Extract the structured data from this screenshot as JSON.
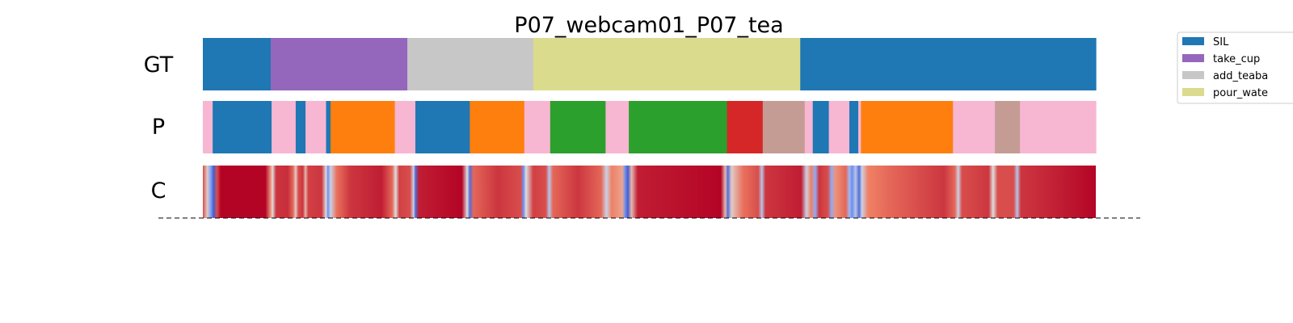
{
  "chart_data": {
    "type": "heatmap",
    "title": "P07_webcam01_P07_tea",
    "rows": [
      {
        "label": "GT",
        "segments": [
          {
            "start": 0.0,
            "end": 0.076,
            "class": "SIL"
          },
          {
            "start": 0.076,
            "end": 0.229,
            "class": "take_cup"
          },
          {
            "start": 0.229,
            "end": 0.37,
            "class": "add_teabag"
          },
          {
            "start": 0.37,
            "end": 0.669,
            "class": "pour_water"
          },
          {
            "start": 0.669,
            "end": 1.0,
            "class": "SIL"
          }
        ]
      },
      {
        "label": "P",
        "segments": [
          {
            "start": 0.0,
            "end": 0.011,
            "color": "#f7b6d2"
          },
          {
            "start": 0.011,
            "end": 0.077,
            "color": "#1f77b4"
          },
          {
            "start": 0.077,
            "end": 0.104,
            "color": "#f7b6d2"
          },
          {
            "start": 0.104,
            "end": 0.115,
            "color": "#1f77b4"
          },
          {
            "start": 0.115,
            "end": 0.138,
            "color": "#f7b6d2"
          },
          {
            "start": 0.138,
            "end": 0.143,
            "color": "#1f77b4"
          },
          {
            "start": 0.143,
            "end": 0.215,
            "color": "#ff7f0e"
          },
          {
            "start": 0.215,
            "end": 0.238,
            "color": "#f7b6d2"
          },
          {
            "start": 0.238,
            "end": 0.299,
            "color": "#1f77b4"
          },
          {
            "start": 0.299,
            "end": 0.36,
            "color": "#ff7f0e"
          },
          {
            "start": 0.36,
            "end": 0.389,
            "color": "#f7b6d2"
          },
          {
            "start": 0.389,
            "end": 0.451,
            "color": "#2ca02c"
          },
          {
            "start": 0.451,
            "end": 0.477,
            "color": "#f7b6d2"
          },
          {
            "start": 0.477,
            "end": 0.587,
            "color": "#2ca02c"
          },
          {
            "start": 0.587,
            "end": 0.627,
            "color": "#d62728"
          },
          {
            "start": 0.627,
            "end": 0.674,
            "color": "#c49c94"
          },
          {
            "start": 0.674,
            "end": 0.683,
            "color": "#f7b6d2"
          },
          {
            "start": 0.683,
            "end": 0.701,
            "color": "#1f77b4"
          },
          {
            "start": 0.701,
            "end": 0.724,
            "color": "#f7b6d2"
          },
          {
            "start": 0.724,
            "end": 0.734,
            "color": "#1f77b4"
          },
          {
            "start": 0.734,
            "end": 0.737,
            "color": "#f7b6d2"
          },
          {
            "start": 0.737,
            "end": 0.84,
            "color": "#ff7f0e"
          },
          {
            "start": 0.84,
            "end": 0.887,
            "color": "#f7b6d2"
          },
          {
            "start": 0.887,
            "end": 0.915,
            "color": "#c49c94"
          },
          {
            "start": 0.915,
            "end": 1.0,
            "color": "#f7b6d2"
          }
        ]
      },
      {
        "label": "C",
        "colormap": "coolwarm",
        "confidence": [
          {
            "t": 0.0,
            "v": 0.85
          },
          {
            "t": 0.005,
            "v": 0.55
          },
          {
            "t": 0.009,
            "v": 0.25
          },
          {
            "t": 0.012,
            "v": 0.05
          },
          {
            "t": 0.016,
            "v": 0.85
          },
          {
            "t": 0.02,
            "v": 1.0
          },
          {
            "t": 0.07,
            "v": 1.0
          },
          {
            "t": 0.076,
            "v": 0.7
          },
          {
            "t": 0.078,
            "v": 0.5
          },
          {
            "t": 0.082,
            "v": 0.9
          },
          {
            "t": 0.095,
            "v": 0.92
          },
          {
            "t": 0.101,
            "v": 0.8
          },
          {
            "t": 0.104,
            "v": 0.55
          },
          {
            "t": 0.107,
            "v": 0.85
          },
          {
            "t": 0.112,
            "v": 0.9
          },
          {
            "t": 0.115,
            "v": 0.6
          },
          {
            "t": 0.118,
            "v": 0.88
          },
          {
            "t": 0.133,
            "v": 0.9
          },
          {
            "t": 0.138,
            "v": 0.5
          },
          {
            "t": 0.14,
            "v": 0.2
          },
          {
            "t": 0.143,
            "v": 0.45
          },
          {
            "t": 0.15,
            "v": 0.78
          },
          {
            "t": 0.165,
            "v": 0.9
          },
          {
            "t": 0.2,
            "v": 0.95
          },
          {
            "t": 0.212,
            "v": 0.8
          },
          {
            "t": 0.216,
            "v": 0.5
          },
          {
            "t": 0.22,
            "v": 0.88
          },
          {
            "t": 0.232,
            "v": 0.85
          },
          {
            "t": 0.236,
            "v": 0.45
          },
          {
            "t": 0.238,
            "v": 0.1
          },
          {
            "t": 0.242,
            "v": 0.95
          },
          {
            "t": 0.29,
            "v": 1.0
          },
          {
            "t": 0.296,
            "v": 0.5
          },
          {
            "t": 0.299,
            "v": 0.1
          },
          {
            "t": 0.303,
            "v": 0.8
          },
          {
            "t": 0.33,
            "v": 0.9
          },
          {
            "t": 0.356,
            "v": 0.85
          },
          {
            "t": 0.359,
            "v": 0.2
          },
          {
            "t": 0.362,
            "v": 0.5
          },
          {
            "t": 0.37,
            "v": 0.88
          },
          {
            "t": 0.384,
            "v": 0.85
          },
          {
            "t": 0.388,
            "v": 0.4
          },
          {
            "t": 0.392,
            "v": 0.8
          },
          {
            "t": 0.42,
            "v": 0.9
          },
          {
            "t": 0.446,
            "v": 0.8
          },
          {
            "t": 0.452,
            "v": 0.45
          },
          {
            "t": 0.458,
            "v": 0.75
          },
          {
            "t": 0.47,
            "v": 0.65
          },
          {
            "t": 0.473,
            "v": 0.2
          },
          {
            "t": 0.476,
            "v": 0.05
          },
          {
            "t": 0.48,
            "v": 0.6
          },
          {
            "t": 0.487,
            "v": 0.95
          },
          {
            "t": 0.58,
            "v": 1.0
          },
          {
            "t": 0.585,
            "v": 0.6
          },
          {
            "t": 0.588,
            "v": 0.1
          },
          {
            "t": 0.592,
            "v": 0.55
          },
          {
            "t": 0.605,
            "v": 0.78
          },
          {
            "t": 0.622,
            "v": 0.85
          },
          {
            "t": 0.626,
            "v": 0.4
          },
          {
            "t": 0.63,
            "v": 0.9
          },
          {
            "t": 0.67,
            "v": 0.95
          },
          {
            "t": 0.676,
            "v": 0.45
          },
          {
            "t": 0.681,
            "v": 0.75
          },
          {
            "t": 0.686,
            "v": 0.3
          },
          {
            "t": 0.69,
            "v": 0.9
          },
          {
            "t": 0.7,
            "v": 0.85
          },
          {
            "t": 0.704,
            "v": 0.3
          },
          {
            "t": 0.708,
            "v": 0.7
          },
          {
            "t": 0.72,
            "v": 0.8
          },
          {
            "t": 0.724,
            "v": 0.35
          },
          {
            "t": 0.727,
            "v": 0.2
          },
          {
            "t": 0.731,
            "v": 0.4
          },
          {
            "t": 0.735,
            "v": 0.1
          },
          {
            "t": 0.738,
            "v": 0.45
          },
          {
            "t": 0.745,
            "v": 0.75
          },
          {
            "t": 0.77,
            "v": 0.8
          },
          {
            "t": 0.8,
            "v": 0.85
          },
          {
            "t": 0.83,
            "v": 0.9
          },
          {
            "t": 0.842,
            "v": 0.8
          },
          {
            "t": 0.846,
            "v": 0.45
          },
          {
            "t": 0.85,
            "v": 0.85
          },
          {
            "t": 0.88,
            "v": 0.9
          },
          {
            "t": 0.885,
            "v": 0.5
          },
          {
            "t": 0.89,
            "v": 0.85
          },
          {
            "t": 0.908,
            "v": 0.85
          },
          {
            "t": 0.912,
            "v": 0.4
          },
          {
            "t": 0.916,
            "v": 0.9
          },
          {
            "t": 0.96,
            "v": 0.95
          },
          {
            "t": 1.0,
            "v": 1.0
          }
        ]
      }
    ],
    "legend": {
      "placement": "upper-right",
      "entries": [
        {
          "label": "SIL",
          "color": "#1f77b4"
        },
        {
          "label": "take_cup",
          "color": "#9467bd"
        },
        {
          "label": "add_teaba",
          "color": "#c7c7c7"
        },
        {
          "label": "pour_wate",
          "color": "#dbdb8d"
        }
      ]
    },
    "class_colors": {
      "SIL": "#1f77b4",
      "take_cup": "#9467bd",
      "add_teabag": "#c7c7c7",
      "pour_water": "#dbdb8d"
    },
    "baseline": "dashed"
  }
}
